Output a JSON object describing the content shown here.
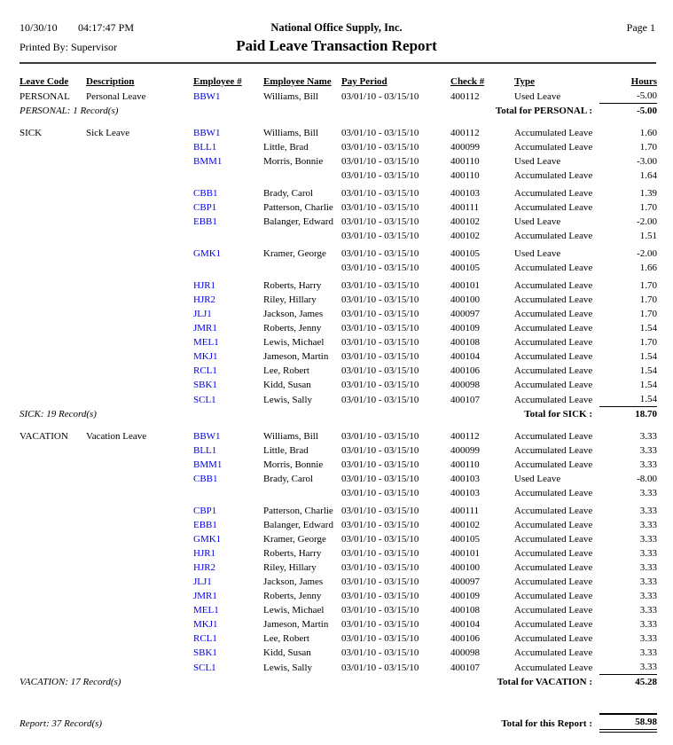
{
  "page": {
    "date": "10/30/10",
    "time": "04:17:47 PM",
    "company": "National Office Supply, Inc.",
    "page_number": "Page 1",
    "printed_by": "Printed By: Supervisor",
    "title": "Paid Leave Transaction Report"
  },
  "colors": {
    "employee_link": "#0000EE",
    "text": "#000000",
    "background": "#FFFFFF"
  },
  "columns": [
    "Leave Code",
    "Description",
    "Employee #",
    "Employee Name",
    "Pay Period",
    "Check #",
    "Type",
    "Hours"
  ],
  "sections": [
    {
      "leave_code": "PERSONAL",
      "description": "Personal Leave",
      "rows": [
        {
          "employee_id": "BBW1",
          "employee_name": "Williams, Bill",
          "pay_period": "03/01/10 - 03/15/10",
          "check": "400112",
          "type": "Used Leave",
          "hours": "-5.00"
        }
      ],
      "record_summary": "PERSONAL: 1 Record(s)",
      "total_label": "Total for PERSONAL :",
      "total_hours": "-5.00"
    },
    {
      "leave_code": "SICK",
      "description": "Sick Leave",
      "rows": [
        {
          "employee_id": "BBW1",
          "employee_name": "Williams, Bill",
          "pay_period": "03/01/10 - 03/15/10",
          "check": "400112",
          "type": "Accumulated Leave",
          "hours": "1.60"
        },
        {
          "employee_id": "BLL1",
          "employee_name": "Little, Brad",
          "pay_period": "03/01/10 - 03/15/10",
          "check": "400099",
          "type": "Accumulated Leave",
          "hours": "1.70"
        },
        {
          "employee_id": "BMM1",
          "employee_name": "Morris, Bonnie",
          "pay_period": "03/01/10 - 03/15/10",
          "check": "400110",
          "type": "Used Leave",
          "hours": "-3.00"
        },
        {
          "employee_id": "",
          "employee_name": "",
          "pay_period": "03/01/10 - 03/15/10",
          "check": "400110",
          "type": "Accumulated Leave",
          "hours": "1.64"
        },
        {
          "employee_id": "CBB1",
          "employee_name": "Brady, Carol",
          "pay_period": "03/01/10 - 03/15/10",
          "check": "400103",
          "type": "Accumulated Leave",
          "hours": "1.39",
          "gap_before": true
        },
        {
          "employee_id": "CBP1",
          "employee_name": "Patterson, Charlie",
          "pay_period": "03/01/10 - 03/15/10",
          "check": "400111",
          "type": "Accumulated Leave",
          "hours": "1.70"
        },
        {
          "employee_id": "EBB1",
          "employee_name": "Balanger, Edward",
          "pay_period": "03/01/10 - 03/15/10",
          "check": "400102",
          "type": "Used Leave",
          "hours": "-2.00"
        },
        {
          "employee_id": "",
          "employee_name": "",
          "pay_period": "03/01/10 - 03/15/10",
          "check": "400102",
          "type": "Accumulated Leave",
          "hours": "1.51"
        },
        {
          "employee_id": "GMK1",
          "employee_name": "Kramer, George",
          "pay_period": "03/01/10 - 03/15/10",
          "check": "400105",
          "type": "Used Leave",
          "hours": "-2.00",
          "gap_before": true
        },
        {
          "employee_id": "",
          "employee_name": "",
          "pay_period": "03/01/10 - 03/15/10",
          "check": "400105",
          "type": "Accumulated Leave",
          "hours": "1.66"
        },
        {
          "employee_id": "HJR1",
          "employee_name": "Roberts, Harry",
          "pay_period": "03/01/10 - 03/15/10",
          "check": "400101",
          "type": "Accumulated Leave",
          "hours": "1.70",
          "gap_before": true
        },
        {
          "employee_id": "HJR2",
          "employee_name": "Riley, Hillary",
          "pay_period": "03/01/10 - 03/15/10",
          "check": "400100",
          "type": "Accumulated Leave",
          "hours": "1.70"
        },
        {
          "employee_id": "JLJ1",
          "employee_name": "Jackson, James",
          "pay_period": "03/01/10 - 03/15/10",
          "check": "400097",
          "type": "Accumulated Leave",
          "hours": "1.70"
        },
        {
          "employee_id": "JMR1",
          "employee_name": "Roberts, Jenny",
          "pay_period": "03/01/10 - 03/15/10",
          "check": "400109",
          "type": "Accumulated Leave",
          "hours": "1.54"
        },
        {
          "employee_id": "MEL1",
          "employee_name": "Lewis, Michael",
          "pay_period": "03/01/10 - 03/15/10",
          "check": "400108",
          "type": "Accumulated Leave",
          "hours": "1.70"
        },
        {
          "employee_id": "MKJ1",
          "employee_name": "Jameson, Martin",
          "pay_period": "03/01/10 - 03/15/10",
          "check": "400104",
          "type": "Accumulated Leave",
          "hours": "1.54"
        },
        {
          "employee_id": "RCL1",
          "employee_name": "Lee, Robert",
          "pay_period": "03/01/10 - 03/15/10",
          "check": "400106",
          "type": "Accumulated Leave",
          "hours": "1.54"
        },
        {
          "employee_id": "SBK1",
          "employee_name": "Kidd, Susan",
          "pay_period": "03/01/10 - 03/15/10",
          "check": "400098",
          "type": "Accumulated Leave",
          "hours": "1.54"
        },
        {
          "employee_id": "SCL1",
          "employee_name": "Lewis, Sally",
          "pay_period": "03/01/10 - 03/15/10",
          "check": "400107",
          "type": "Accumulated Leave",
          "hours": "1.54"
        }
      ],
      "record_summary": "SICK: 19 Record(s)",
      "total_label": "Total for SICK :",
      "total_hours": "18.70"
    },
    {
      "leave_code": "VACATION",
      "description": "Vacation Leave",
      "rows": [
        {
          "employee_id": "BBW1",
          "employee_name": "Williams, Bill",
          "pay_period": "03/01/10 - 03/15/10",
          "check": "400112",
          "type": "Accumulated Leave",
          "hours": "3.33"
        },
        {
          "employee_id": "BLL1",
          "employee_name": "Little, Brad",
          "pay_period": "03/01/10 - 03/15/10",
          "check": "400099",
          "type": "Accumulated Leave",
          "hours": "3.33"
        },
        {
          "employee_id": "BMM1",
          "employee_name": "Morris, Bonnie",
          "pay_period": "03/01/10 - 03/15/10",
          "check": "400110",
          "type": "Accumulated Leave",
          "hours": "3.33"
        },
        {
          "employee_id": "CBB1",
          "employee_name": "Brady, Carol",
          "pay_period": "03/01/10 - 03/15/10",
          "check": "400103",
          "type": "Used Leave",
          "hours": "-8.00"
        },
        {
          "employee_id": "",
          "employee_name": "",
          "pay_period": "03/01/10 - 03/15/10",
          "check": "400103",
          "type": "Accumulated Leave",
          "hours": "3.33"
        },
        {
          "employee_id": "CBP1",
          "employee_name": "Patterson, Charlie",
          "pay_period": "03/01/10 - 03/15/10",
          "check": "400111",
          "type": "Accumulated Leave",
          "hours": "3.33",
          "gap_before": true
        },
        {
          "employee_id": "EBB1",
          "employee_name": "Balanger, Edward",
          "pay_period": "03/01/10 - 03/15/10",
          "check": "400102",
          "type": "Accumulated Leave",
          "hours": "3.33"
        },
        {
          "employee_id": "GMK1",
          "employee_name": "Kramer, George",
          "pay_period": "03/01/10 - 03/15/10",
          "check": "400105",
          "type": "Accumulated Leave",
          "hours": "3.33"
        },
        {
          "employee_id": "HJR1",
          "employee_name": "Roberts, Harry",
          "pay_period": "03/01/10 - 03/15/10",
          "check": "400101",
          "type": "Accumulated Leave",
          "hours": "3.33"
        },
        {
          "employee_id": "HJR2",
          "employee_name": "Riley, Hillary",
          "pay_period": "03/01/10 - 03/15/10",
          "check": "400100",
          "type": "Accumulated Leave",
          "hours": "3.33"
        },
        {
          "employee_id": "JLJ1",
          "employee_name": "Jackson, James",
          "pay_period": "03/01/10 - 03/15/10",
          "check": "400097",
          "type": "Accumulated Leave",
          "hours": "3.33"
        },
        {
          "employee_id": "JMR1",
          "employee_name": "Roberts, Jenny",
          "pay_period": "03/01/10 - 03/15/10",
          "check": "400109",
          "type": "Accumulated Leave",
          "hours": "3.33"
        },
        {
          "employee_id": "MEL1",
          "employee_name": "Lewis, Michael",
          "pay_period": "03/01/10 - 03/15/10",
          "check": "400108",
          "type": "Accumulated Leave",
          "hours": "3.33"
        },
        {
          "employee_id": "MKJ1",
          "employee_name": "Jameson, Martin",
          "pay_period": "03/01/10 - 03/15/10",
          "check": "400104",
          "type": "Accumulated Leave",
          "hours": "3.33"
        },
        {
          "employee_id": "RCL1",
          "employee_name": "Lee, Robert",
          "pay_period": "03/01/10 - 03/15/10",
          "check": "400106",
          "type": "Accumulated Leave",
          "hours": "3.33"
        },
        {
          "employee_id": "SBK1",
          "employee_name": "Kidd, Susan",
          "pay_period": "03/01/10 - 03/15/10",
          "check": "400098",
          "type": "Accumulated Leave",
          "hours": "3.33"
        },
        {
          "employee_id": "SCL1",
          "employee_name": "Lewis, Sally",
          "pay_period": "03/01/10 - 03/15/10",
          "check": "400107",
          "type": "Accumulated Leave",
          "hours": "3.33"
        }
      ],
      "record_summary": "VACATION: 17 Record(s)",
      "total_label": "Total for VACATION :",
      "total_hours": "45.28"
    }
  ],
  "report_footer": {
    "record_summary": "Report: 37 Record(s)",
    "total_label": "Total for this Report :",
    "total_hours": "58.98"
  }
}
